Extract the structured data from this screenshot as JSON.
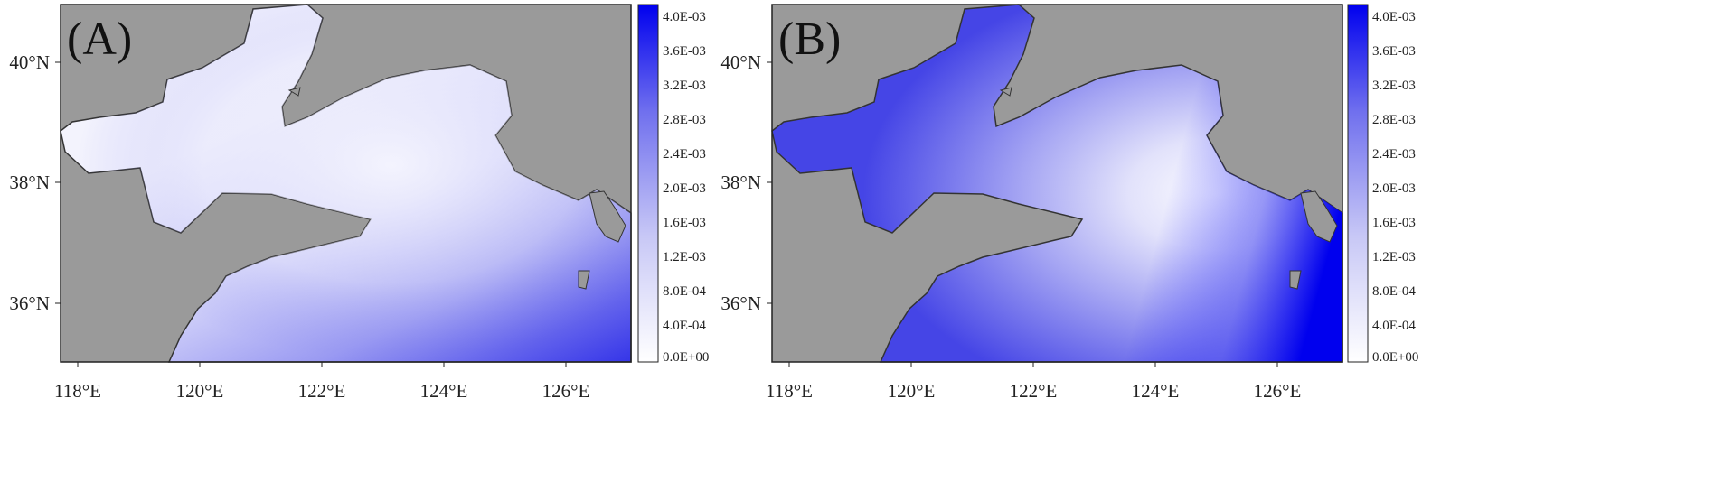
{
  "panels": [
    {
      "id": "A",
      "label": "(A)"
    },
    {
      "id": "B",
      "label": "(B)"
    }
  ],
  "axes": {
    "lon_ticks": [
      "118°E",
      "120°E",
      "122°E",
      "124°E",
      "126°E"
    ],
    "lat_ticks": [
      "40°N",
      "38°N",
      "36°N"
    ]
  },
  "colorbar": {
    "labels": [
      "4.0E-03",
      "3.6E-03",
      "3.2E-03",
      "2.8E-03",
      "2.4E-03",
      "2.0E-03",
      "1.6E-03",
      "1.2E-03",
      "8.0E-04",
      "4.0E-04",
      "0.0E+00"
    ],
    "color_min": "#ffffff",
    "color_max": "#0000ee"
  },
  "colors": {
    "land": "#9a9a9a",
    "coast": "#333333",
    "frame": "#222222"
  }
}
